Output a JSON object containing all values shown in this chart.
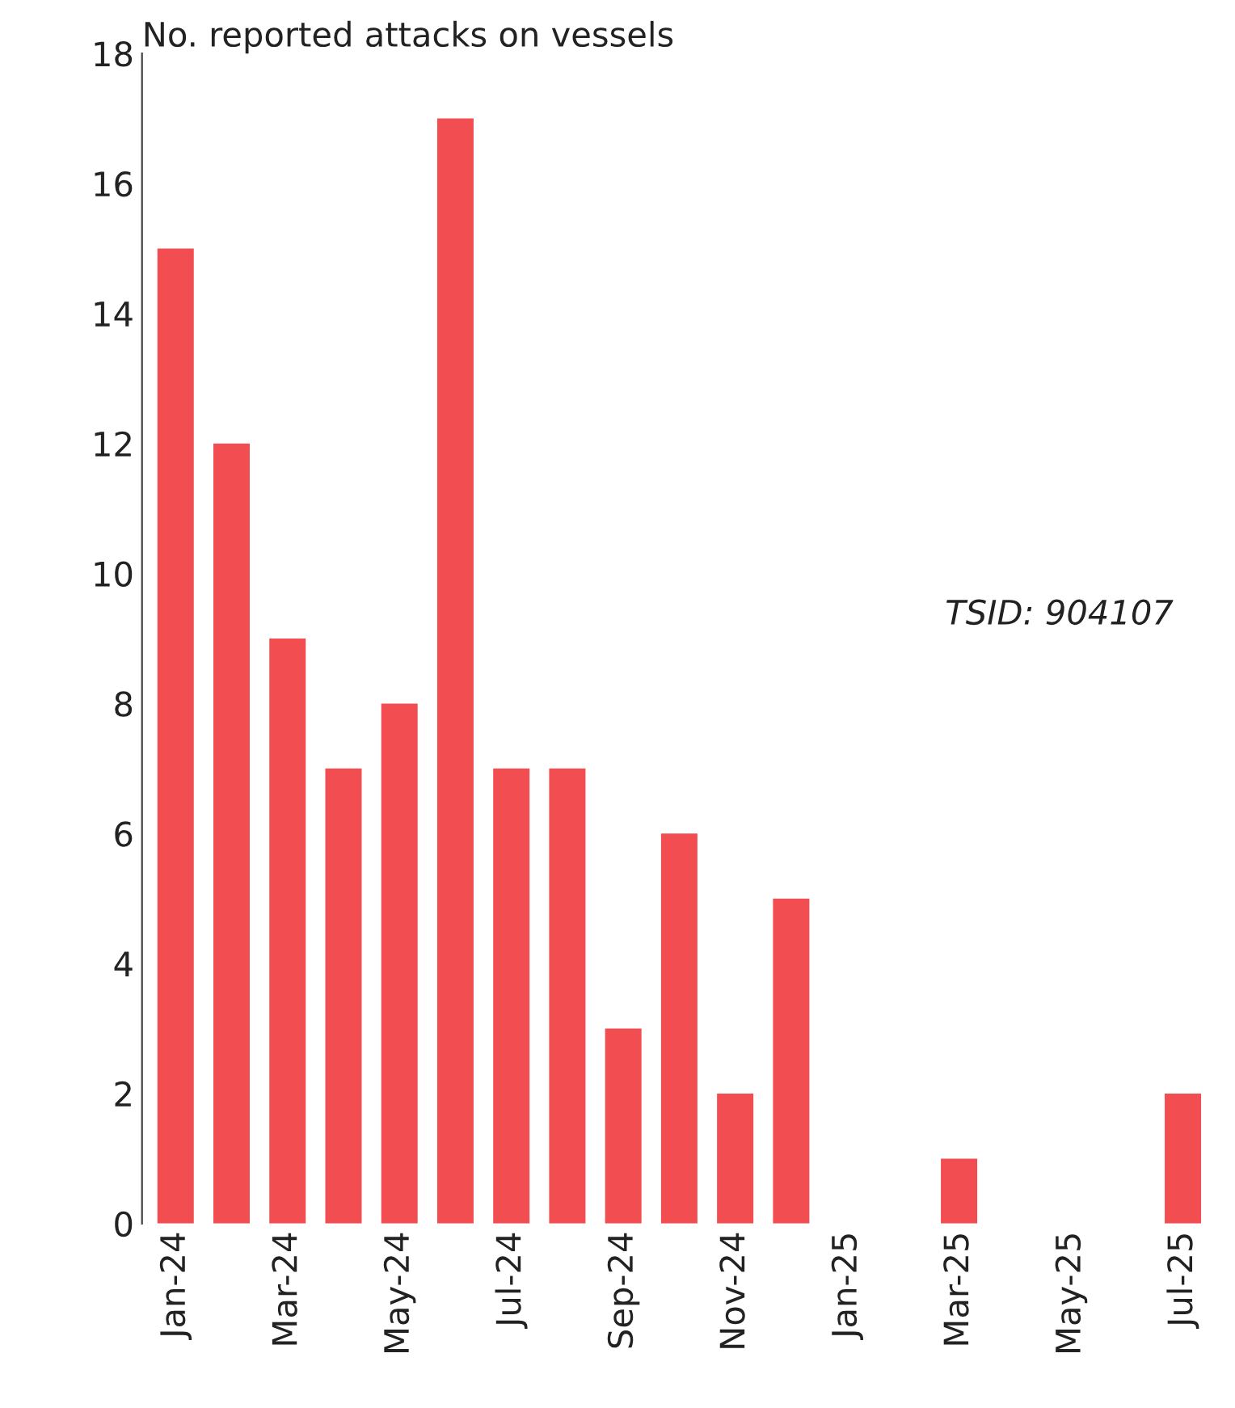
{
  "chart_data": {
    "type": "bar",
    "ylabel": "No. reported attacks on vessels",
    "categories": [
      "Jan-24",
      null,
      "Mar-24",
      null,
      "May-24",
      null,
      "Jul-24",
      null,
      "Sep-24",
      null,
      "Nov-24",
      null,
      "Jan-25",
      null,
      "Mar-25",
      null,
      "May-25",
      null,
      "Jul-25"
    ],
    "values": [
      15,
      12,
      9,
      7,
      8,
      17,
      7,
      7,
      3,
      6,
      2,
      5,
      0,
      0,
      1,
      0,
      0,
      0,
      2
    ],
    "color": "#f24e51",
    "ylim": [
      0,
      18
    ],
    "yticks": [
      0,
      2,
      4,
      6,
      8,
      10,
      12,
      14,
      16,
      18
    ],
    "grid": false,
    "legend": false,
    "annotations": [
      {
        "text": "TSID: 904107"
      }
    ]
  }
}
